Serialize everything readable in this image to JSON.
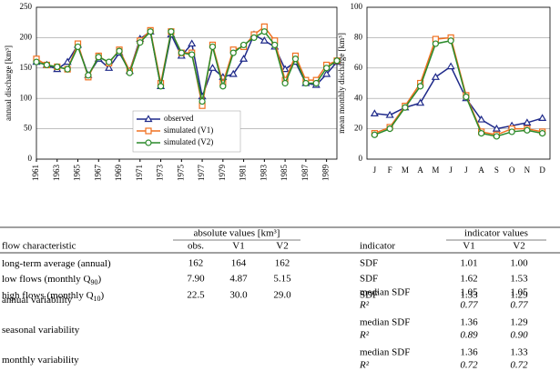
{
  "chart_data": [
    {
      "type": "line",
      "ylabel": "annual discharge [km³]",
      "x": [
        1961,
        1962,
        1963,
        1964,
        1965,
        1966,
        1967,
        1968,
        1969,
        1970,
        1971,
        1972,
        1973,
        1974,
        1975,
        1976,
        1977,
        1978,
        1979,
        1980,
        1981,
        1982,
        1983,
        1984,
        1985,
        1986,
        1987,
        1988,
        1989,
        1990
      ],
      "xlim": [
        1961,
        1990
      ],
      "xticks": [
        1961,
        1963,
        1965,
        1967,
        1969,
        1971,
        1973,
        1975,
        1977,
        1979,
        1981,
        1983,
        1985,
        1987,
        1989
      ],
      "ylim": [
        0,
        250
      ],
      "yticks": [
        0,
        50,
        100,
        150,
        200,
        250
      ],
      "grid": true,
      "legend": "lower center",
      "series": [
        {
          "name": "observed",
          "color": "#1f2a8a",
          "marker": "triangle",
          "values": [
            160,
            155,
            148,
            160,
            188,
            138,
            165,
            150,
            175,
            145,
            198,
            210,
            120,
            205,
            170,
            190,
            103,
            150,
            135,
            140,
            165,
            205,
            195,
            185,
            148,
            160,
            125,
            122,
            140,
            160
          ]
        },
        {
          "name": "simulated (V1)",
          "color": "#f07020",
          "marker": "square",
          "values": [
            165,
            155,
            152,
            148,
            190,
            135,
            170,
            158,
            180,
            145,
            195,
            212,
            125,
            210,
            175,
            175,
            88,
            188,
            125,
            180,
            185,
            205,
            218,
            195,
            130,
            170,
            130,
            130,
            155,
            162
          ]
        },
        {
          "name": "simulated (V2)",
          "color": "#2a8a2a",
          "marker": "circle",
          "values": [
            160,
            155,
            152,
            148,
            185,
            138,
            168,
            160,
            178,
            142,
            192,
            210,
            120,
            210,
            175,
            172,
            95,
            185,
            120,
            175,
            188,
            200,
            210,
            188,
            125,
            165,
            125,
            125,
            150,
            162
          ]
        }
      ]
    },
    {
      "type": "line",
      "ylabel": "mean monthly discharge [km³]",
      "categories": [
        "J",
        "F",
        "M",
        "A",
        "M",
        "J",
        "J",
        "A",
        "S",
        "O",
        "N",
        "D"
      ],
      "ylim": [
        0,
        100
      ],
      "yticks": [
        0,
        20,
        40,
        60,
        80,
        100
      ],
      "grid": true,
      "series": [
        {
          "color": "#1f2a8a",
          "marker": "triangle",
          "values": [
            30,
            29,
            34,
            37,
            54,
            61,
            40,
            26,
            20,
            22,
            24,
            27
          ]
        },
        {
          "color": "#f07020",
          "marker": "square",
          "values": [
            17,
            21,
            35,
            50,
            79,
            80,
            42,
            18,
            16,
            20,
            20,
            18
          ]
        },
        {
          "color": "#2a8a2a",
          "marker": "circle",
          "values": [
            16,
            20,
            34,
            48,
            76,
            78,
            41,
            17,
            15,
            18,
            19,
            17
          ]
        }
      ]
    }
  ],
  "table": {
    "group_headers": [
      "absolute values [km³]",
      "indicator values"
    ],
    "columns": [
      "flow characteristic",
      "obs.",
      "V1",
      "V2",
      "indicator",
      "V1",
      "V2"
    ],
    "rows": [
      {
        "cells": [
          [
            "long-term average (annual)"
          ],
          "162",
          "164",
          "162"
        ],
        "indicators": [
          [
            "SDF",
            "1.01",
            "1.00"
          ]
        ]
      },
      {
        "cells": [
          [
            "low flows (monthly Q",
            "90",
            ")"
          ],
          "7.90",
          "4.87",
          "5.15"
        ],
        "indicators": [
          [
            "SDF",
            "1.62",
            "1.53"
          ]
        ]
      },
      {
        "cells": [
          [
            "high flows (monthly Q",
            "10",
            ")"
          ],
          "22.5",
          "30.0",
          "29.0"
        ],
        "indicators": [
          [
            "SDF",
            "1.33",
            "1.29"
          ]
        ]
      },
      {
        "cells": [
          [
            "annual variability"
          ]
        ],
        "indicators": [
          [
            "median SDF",
            "1.05",
            "1.05"
          ],
          [
            "R²",
            "0.77",
            "0.77"
          ]
        ]
      },
      {
        "cells": [
          [
            "seasonal variability"
          ]
        ],
        "indicators": [
          [
            "median SDF",
            "1.36",
            "1.29"
          ],
          [
            "R²",
            "0.89",
            "0.90"
          ]
        ]
      },
      {
        "cells": [
          [
            "monthly variability"
          ]
        ],
        "indicators": [
          [
            "median SDF",
            "1.36",
            "1.33"
          ],
          [
            "R²",
            "0.72",
            "0.72"
          ]
        ]
      }
    ]
  }
}
